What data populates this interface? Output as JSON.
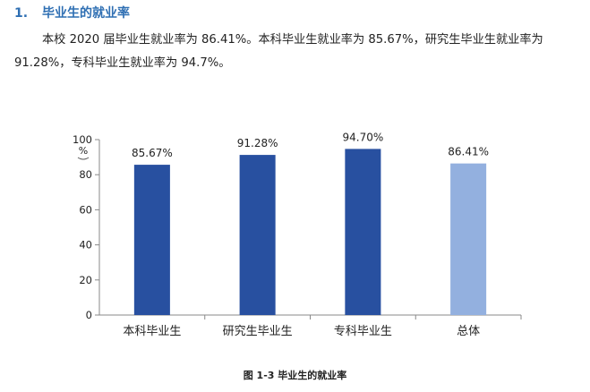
{
  "section": {
    "number": "1.",
    "title": "毕业生的就业率"
  },
  "paragraph": "本校 2020 届毕业生就业率为 86.41%。本科毕业生就业率为 85.67%，研究生毕业生就业率为 91.28%，专科毕业生就业率为 94.7%。",
  "figure_caption": "图 1-3  毕业生的就业率",
  "chart_data": {
    "type": "bar",
    "categories": [
      "本科毕业生",
      "研究生毕业生",
      "专科毕业生",
      "总体"
    ],
    "values": [
      85.67,
      91.28,
      94.7,
      86.41
    ],
    "data_labels": [
      "85.67%",
      "91.28%",
      "94.70%",
      "86.41%"
    ],
    "bar_colors": [
      "#2850a0",
      "#2850a0",
      "#2850a0",
      "#93b0df"
    ],
    "ylabel": "%",
    "ylim": [
      0,
      100
    ],
    "yticks": [
      0,
      20,
      40,
      60,
      80,
      100
    ],
    "grid": false,
    "legend": false
  }
}
